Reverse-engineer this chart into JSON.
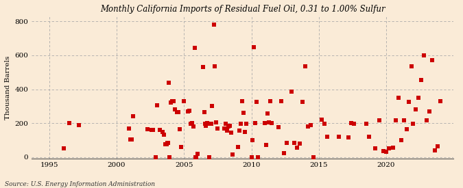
{
  "title": "Monthly California Imports of Residual Fuel Oil, 0.31 to 1.00% Sulfur",
  "ylabel": "Thousand Barrels",
  "source": "Source: U.S. Energy Information Administration",
  "background_color": "#faebd7",
  "plot_bg_color": "#faebd7",
  "marker_color": "#cc0000",
  "marker_size": 18,
  "xlim": [
    1993.7,
    2025.0
  ],
  "ylim": [
    -10,
    830
  ],
  "yticks": [
    0,
    200,
    400,
    600,
    800
  ],
  "xticks": [
    1995,
    2000,
    2005,
    2010,
    2015,
    2020
  ],
  "data_x": [
    1996.1,
    1996.5,
    1997.2,
    2000.9,
    2001.0,
    2001.1,
    2001.2,
    2002.3,
    2002.6,
    2002.7,
    2002.9,
    2003.0,
    2003.2,
    2003.4,
    2003.5,
    2003.6,
    2003.7,
    2003.75,
    2003.8,
    2003.85,
    2003.9,
    2004.0,
    2004.1,
    2004.2,
    2004.3,
    2004.5,
    2004.6,
    2004.7,
    2004.8,
    2005.0,
    2005.3,
    2005.4,
    2005.5,
    2005.6,
    2005.7,
    2005.8,
    2005.85,
    2005.9,
    2006.0,
    2006.4,
    2006.5,
    2006.55,
    2006.6,
    2006.7,
    2006.8,
    2006.85,
    2007.0,
    2007.05,
    2007.2,
    2007.3,
    2007.4,
    2007.5,
    2008.0,
    2008.1,
    2008.2,
    2008.3,
    2008.4,
    2008.5,
    2008.6,
    2009.0,
    2009.1,
    2009.2,
    2009.3,
    2009.4,
    2009.5,
    2009.6,
    2010.0,
    2010.05,
    2010.2,
    2010.3,
    2010.4,
    2010.5,
    2011.0,
    2011.1,
    2011.2,
    2011.3,
    2011.4,
    2011.5,
    2012.0,
    2012.2,
    2012.4,
    2012.6,
    2013.0,
    2013.2,
    2013.4,
    2013.6,
    2013.8,
    2014.0,
    2014.2,
    2014.4,
    2014.6,
    2015.2,
    2015.4,
    2015.6,
    2016.5,
    2017.2,
    2017.4,
    2017.6,
    2018.5,
    2018.7,
    2019.2,
    2019.5,
    2019.8,
    2020.0,
    2020.2,
    2020.5,
    2020.7,
    2020.9,
    2021.1,
    2021.3,
    2021.5,
    2021.7,
    2021.9,
    2022.0,
    2022.2,
    2022.4,
    2022.6,
    2022.8,
    2023.0,
    2023.2,
    2023.4,
    2023.6,
    2023.8,
    2024.0
  ],
  "data_y": [
    50,
    200,
    190,
    170,
    105,
    105,
    240,
    165,
    160,
    160,
    0,
    305,
    160,
    150,
    130,
    75,
    75,
    85,
    85,
    440,
    0,
    320,
    330,
    330,
    280,
    265,
    265,
    165,
    60,
    330,
    270,
    275,
    195,
    200,
    180,
    645,
    0,
    0,
    20,
    530,
    265,
    195,
    185,
    200,
    195,
    0,
    195,
    300,
    780,
    535,
    205,
    170,
    170,
    195,
    155,
    180,
    185,
    145,
    15,
    60,
    155,
    195,
    330,
    260,
    150,
    195,
    0,
    100,
    650,
    200,
    325,
    0,
    200,
    70,
    255,
    205,
    330,
    200,
    175,
    330,
    25,
    85,
    385,
    85,
    55,
    80,
    325,
    535,
    180,
    190,
    0,
    220,
    195,
    120,
    120,
    115,
    200,
    195,
    195,
    120,
    50,
    215,
    35,
    30,
    50,
    55,
    215,
    350,
    100,
    215,
    165,
    325,
    535,
    195,
    280,
    350,
    455,
    600,
    215,
    270,
    570,
    40,
    65,
    330
  ]
}
